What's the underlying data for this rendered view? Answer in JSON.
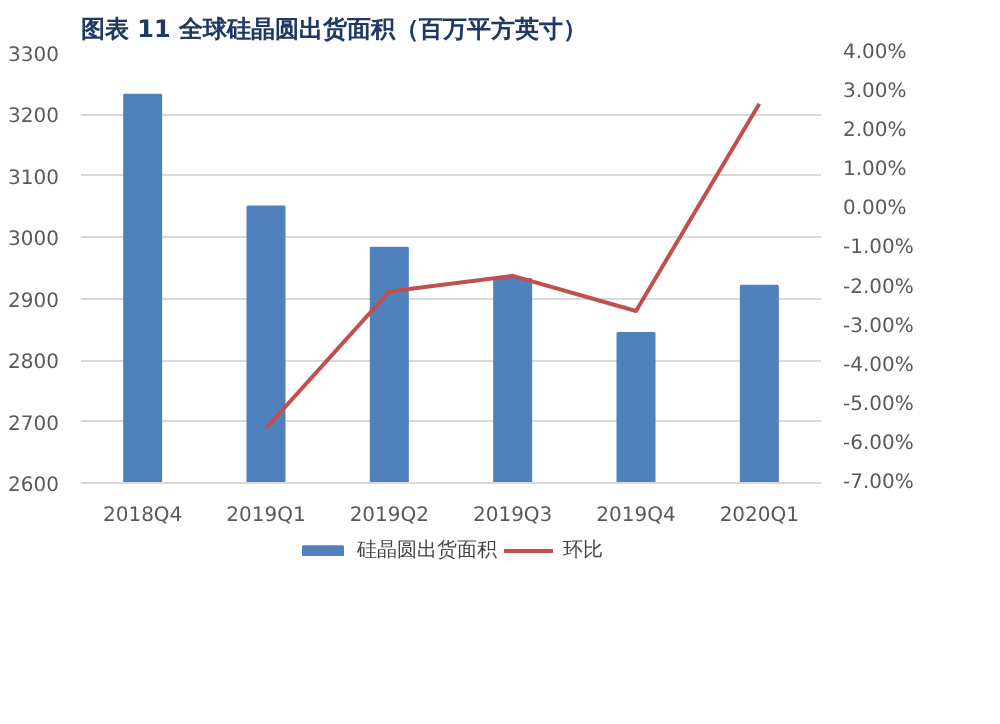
{
  "chart_data": {
    "type": "bar",
    "title": "图表 11 全球硅晶圆出货面积（百万平方英寸）",
    "categories": [
      "2018Q4",
      "2019Q1",
      "2019Q2",
      "2019Q3",
      "2019Q4",
      "2020Q1"
    ],
    "series": [
      {
        "name": "硅晶圆出货面积",
        "color": "#4f81bd",
        "values": [
          3232,
          3050,
          2983,
          2932,
          2844,
          2921
        ]
      },
      {
        "name": "环比",
        "color": "#c0504d",
        "type": "line",
        "axis": "y2",
        "values": [
          null,
          -5.6,
          -2.1,
          -1.7,
          -2.6,
          2.7
        ]
      }
    ],
    "ylim": [
      2600,
      3300
    ],
    "yticks": [
      2600,
      2700,
      2800,
      2900,
      3000,
      3100,
      3200,
      3300
    ],
    "y2lim": [
      -7,
      4
    ],
    "y2ticks": [
      {
        "value": -7,
        "label": "-7.00%"
      },
      {
        "value": -6,
        "label": "-6.00%"
      },
      {
        "value": -5,
        "label": "-5.00%"
      },
      {
        "value": -4,
        "label": "-4.00%"
      },
      {
        "value": -3,
        "label": "-3.00%"
      },
      {
        "value": -2,
        "label": "-2.00%"
      },
      {
        "value": -1,
        "label": "-1.00%"
      },
      {
        "value": 0,
        "label": "0.00%"
      },
      {
        "value": 1,
        "label": "1.00%"
      },
      {
        "value": 2,
        "label": "2.00%"
      },
      {
        "value": 3,
        "label": "3.00%"
      },
      {
        "value": 4,
        "label": "4.00%"
      }
    ],
    "grid": "y",
    "legend": "bottom"
  }
}
